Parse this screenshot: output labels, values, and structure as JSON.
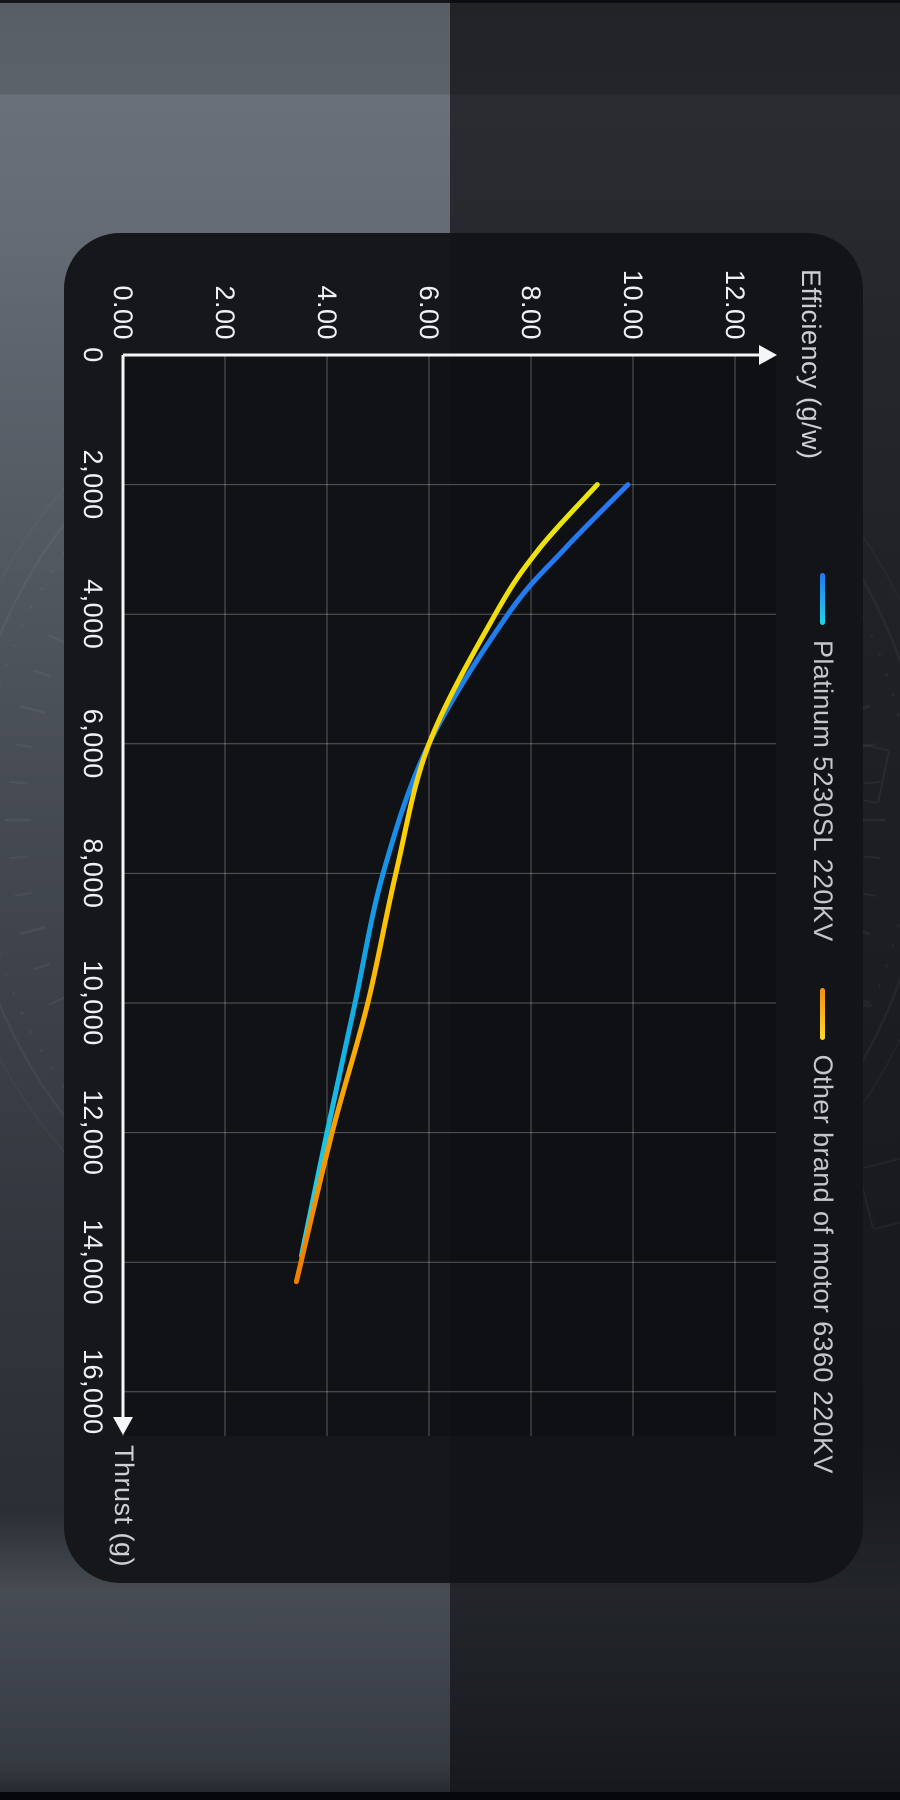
{
  "background": {
    "split_x": 450,
    "left_top_color": "#6a707a",
    "right_top_color": "#26282d",
    "card_color": "#121418",
    "bottom_bar_color": "#05070a"
  },
  "chart_data": {
    "type": "line",
    "title": "",
    "orientation": "rotated 90deg clockwise (portrait render of landscape chart)",
    "xlabel": "Thrust (g)",
    "ylabel": "Efficiency (g/w)",
    "xlim": [
      0,
      16700
    ],
    "ylim": [
      0,
      12.8
    ],
    "grid": true,
    "legend_position": "top",
    "axis_color": "#f4f6f8",
    "grid_color": "rgba(255,255,255,0.30)",
    "tick_color": "#eef1f4",
    "x_ticks": [
      0,
      2000,
      4000,
      6000,
      8000,
      10000,
      12000,
      14000,
      16000
    ],
    "x_tick_labels": [
      "0",
      "2,000",
      "4,000",
      "6,000",
      "8,000",
      "10,000",
      "12,000",
      "14,000",
      "16,000"
    ],
    "y_ticks": [
      0,
      2,
      4,
      6,
      8,
      10,
      12
    ],
    "y_tick_labels": [
      "0.00",
      "2.00",
      "4.00",
      "6.00",
      "8.00",
      "10.00",
      "12.00"
    ],
    "series": [
      {
        "name": "Platinum 5230SL 220KV",
        "color_start": "#2776f2",
        "color_end": "#25d9e8",
        "gradient_stops": [
          [
            0,
            "#2776f2"
          ],
          [
            0.4,
            "#1787e9"
          ],
          [
            0.75,
            "#14b4e2"
          ],
          [
            1,
            "#25d9e8"
          ]
        ],
        "legend_gradient": [
          "#2277f0",
          "#22d5e8"
        ],
        "points": [
          [
            2000,
            9.9
          ],
          [
            3000,
            8.65
          ],
          [
            4000,
            7.55
          ],
          [
            6000,
            6.0
          ],
          [
            8000,
            5.1
          ],
          [
            10000,
            4.55
          ],
          [
            12000,
            4.0
          ],
          [
            13900,
            3.5
          ]
        ]
      },
      {
        "name": "Other brand of motor 6360 220KV",
        "color_start": "#e9e70f",
        "color_end": "#ef7e00",
        "gradient_stops": [
          [
            0,
            "#e9e70f"
          ],
          [
            0.45,
            "#fdcf06"
          ],
          [
            0.78,
            "#f8a202"
          ],
          [
            1,
            "#ef7e00"
          ]
        ],
        "legend_gradient": [
          "#f08d10",
          "#ffd92e"
        ],
        "points": [
          [
            2000,
            9.3
          ],
          [
            3000,
            8.15
          ],
          [
            4000,
            7.3
          ],
          [
            6000,
            6.0
          ],
          [
            8000,
            5.35
          ],
          [
            10000,
            4.8
          ],
          [
            12000,
            4.1
          ],
          [
            14300,
            3.4
          ]
        ]
      }
    ]
  }
}
